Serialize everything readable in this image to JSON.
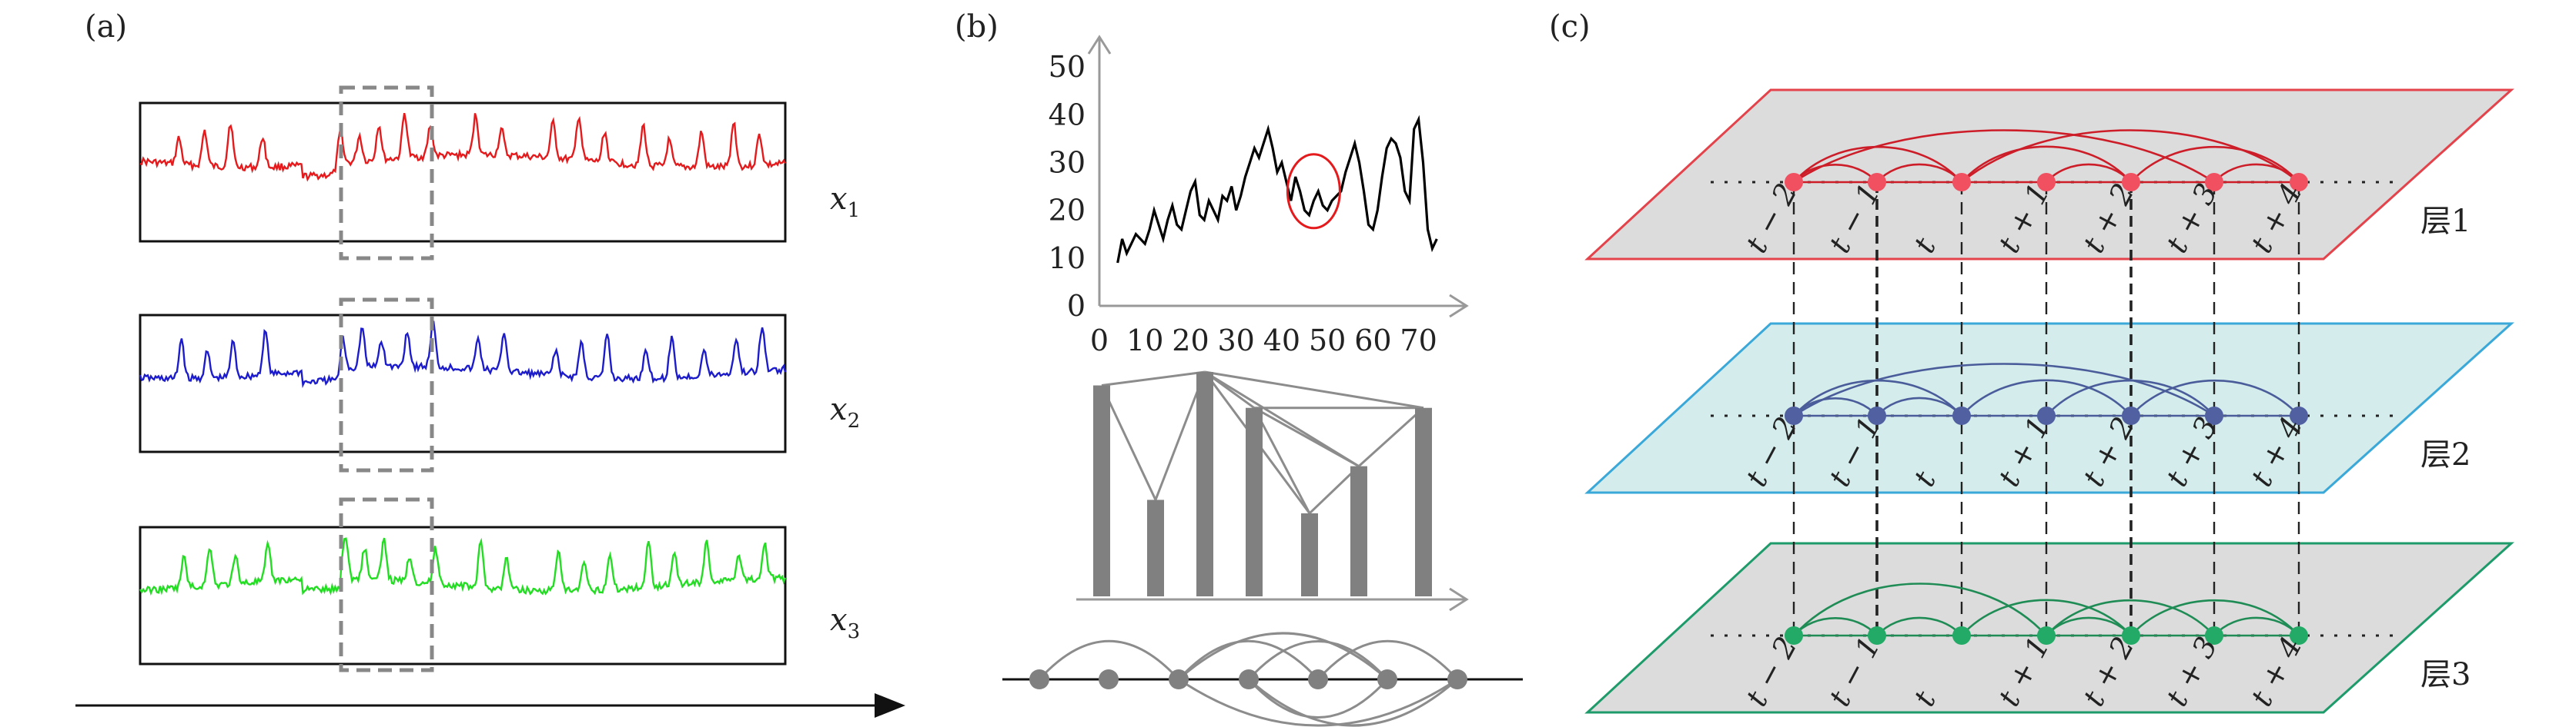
{
  "panels": {
    "a": {
      "label": "(a)",
      "series": [
        {
          "label_var": "x",
          "label_sub": "1",
          "color": "#e41a1c"
        },
        {
          "label_var": "x",
          "label_sub": "2",
          "color": "#1c1ccc"
        },
        {
          "label_var": "x",
          "label_sub": "3",
          "color": "#22dd22"
        }
      ]
    },
    "b": {
      "label": "(b)",
      "chart_data": {
        "type": "line",
        "y_ticks": [
          0,
          10,
          20,
          30,
          40,
          50
        ],
        "x_ticks": [
          0,
          10,
          20,
          30,
          40,
          50,
          60,
          70
        ],
        "xlim": [
          0,
          78
        ],
        "ylim": [
          0,
          55
        ],
        "series": [
          {
            "color": "#000000",
            "x": [
              4,
              5,
              6,
              7,
              8,
              9,
              10,
              11,
              12,
              13,
              14,
              15,
              16,
              17,
              18,
              19,
              20,
              21,
              22,
              23,
              24,
              25,
              26,
              27,
              28,
              29,
              30,
              31,
              32,
              33,
              34,
              35,
              36,
              37,
              38,
              39,
              40,
              41,
              42,
              43,
              44,
              45,
              46,
              47,
              48,
              49,
              50,
              51,
              52,
              53,
              54,
              55,
              56,
              57,
              58,
              59,
              60,
              61,
              62,
              63,
              64,
              65,
              66,
              67,
              68,
              69,
              70,
              71,
              72,
              73,
              74
            ],
            "values": [
              9,
              14,
              11,
              13,
              15,
              14,
              13,
              16,
              20,
              17,
              14,
              18,
              21,
              17,
              16,
              20,
              24,
              26,
              19,
              18,
              22,
              20,
              18,
              23,
              22,
              25,
              20,
              23,
              27,
              30,
              33,
              31,
              34,
              37,
              33,
              28,
              30,
              26,
              22,
              27,
              24,
              20,
              19,
              22,
              24,
              21,
              20,
              22,
              23,
              24,
              28,
              31,
              34,
              30,
              24,
              17,
              16,
              20,
              27,
              33,
              35,
              34,
              31,
              24,
              22,
              37,
              39,
              30,
              16,
              12,
              14
            ]
          }
        ],
        "annotations": [
          {
            "type": "circle",
            "color": "#e41a1c",
            "x": 47,
            "y": 24
          }
        ],
        "visibility_graph": {
          "bar_heights": [
            0.94,
            0.43,
            1.0,
            0.84,
            0.37,
            0.58,
            0.84
          ],
          "links": [
            [
              0,
              1
            ],
            [
              0,
              2
            ],
            [
              1,
              2
            ],
            [
              2,
              3
            ],
            [
              2,
              4
            ],
            [
              2,
              5
            ],
            [
              2,
              6
            ],
            [
              3,
              4
            ],
            [
              3,
              5
            ],
            [
              3,
              6
            ],
            [
              4,
              5
            ],
            [
              5,
              6
            ]
          ],
          "arc_nodes": 7
        }
      }
    },
    "c": {
      "label": "(c)",
      "node_labels": [
        "t − 2",
        "t − 1",
        "t",
        "t + 1",
        "t + 2",
        "t + 3",
        "t + 4"
      ],
      "layers": [
        {
          "name": "层1",
          "edge": "#e4434b",
          "fill": "#dcdcdc",
          "node": "#f05060",
          "arc": "#cc1d28",
          "links": [
            [
              0,
              1
            ],
            [
              0,
              2
            ],
            [
              0,
              5
            ],
            [
              1,
              2
            ],
            [
              2,
              4
            ],
            [
              2,
              6
            ],
            [
              3,
              4
            ],
            [
              4,
              6
            ],
            [
              5,
              6
            ]
          ]
        },
        {
          "name": "层2",
          "edge": "#3aa8d8",
          "fill": "#d4ecec",
          "node": "#5060a0",
          "arc": "#4a5c9a",
          "links": [
            [
              0,
              1
            ],
            [
              0,
              2
            ],
            [
              0,
              5
            ],
            [
              1,
              2
            ],
            [
              2,
              4
            ],
            [
              3,
              5
            ],
            [
              4,
              6
            ]
          ]
        },
        {
          "name": "层3",
          "edge": "#1e9b6a",
          "fill": "#dcdcdc",
          "node": "#22aa66",
          "arc": "#1f8c55",
          "links": [
            [
              0,
              1
            ],
            [
              0,
              3
            ],
            [
              1,
              2
            ],
            [
              2,
              4
            ],
            [
              3,
              4
            ],
            [
              3,
              5
            ],
            [
              4,
              6
            ],
            [
              5,
              6
            ]
          ]
        }
      ]
    }
  }
}
